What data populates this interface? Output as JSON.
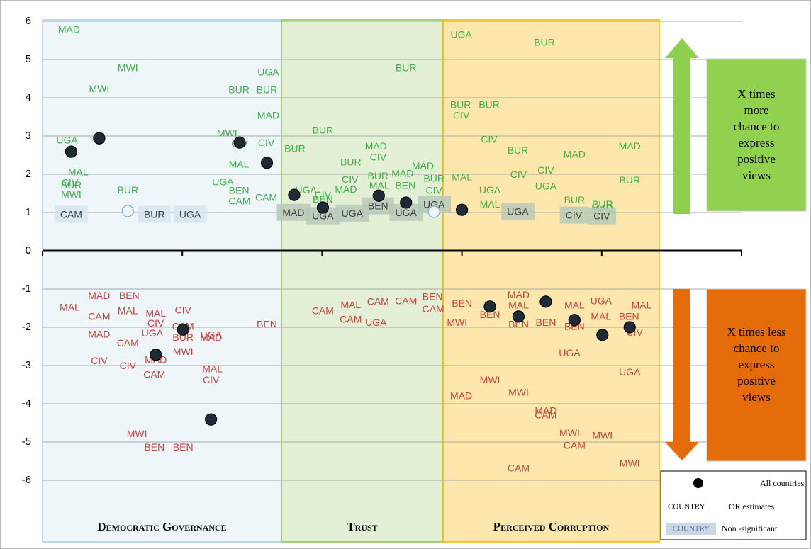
{
  "chart_data": {
    "type": "scatter",
    "xlim": [
      0,
      10
    ],
    "xticks": [
      0,
      2,
      4,
      6,
      8,
      10
    ],
    "ylim": [
      -6,
      6
    ],
    "yticks": [
      -6,
      -5,
      -4,
      -3,
      -2,
      -1,
      0,
      1,
      2,
      3,
      4,
      5,
      6
    ],
    "grid": true,
    "panels": [
      "Democratic Governance",
      "Trust",
      "Perceived Corruption"
    ],
    "up_box": [
      "X times",
      "more",
      "chance to",
      "express",
      "positive",
      "views"
    ],
    "down_box": [
      "X times less",
      "chance to",
      "express",
      "positive",
      "views"
    ],
    "legend": {
      "country": "COUNTRY",
      "or": "OR estimates",
      "nonsig": "Non -significant"
    },
    "series": [
      {
        "color": "#3fae49",
        "labels": [
          "MAD",
          "MWI",
          "MWI",
          "UGA",
          "MAL",
          "CIV",
          "BUR",
          "MWI",
          "BUR",
          "UGA",
          "BUR",
          "BUR",
          "MAD",
          "MWI",
          "CIV",
          "CIV",
          "MAL",
          "UGA",
          "BEN",
          "CAM",
          "CAM",
          "BUR",
          "BUR",
          "BUR",
          "MAD",
          "CIV",
          "MAD",
          "BUR",
          "CIV",
          "BUR",
          "MAD",
          "MAL",
          "BEN",
          "MAD",
          "BUR",
          "CIV",
          "UGA",
          "CIV",
          "BEN",
          "UGA",
          "BUR",
          "BUR",
          "BUR",
          "CIV",
          "CIV",
          "BUR",
          "MAD",
          "MAD",
          "CIV",
          "CIV",
          "UGA",
          "BUR",
          "MAL",
          "UGA",
          "MAL",
          "BUR",
          "BUR",
          "MAD"
        ],
        "x": [
          0.38,
          1.22,
          0.81,
          0.35,
          0.51,
          0.39,
          0.41,
          0.41,
          1.22,
          3.23,
          2.81,
          3.21,
          3.23,
          2.64,
          2.82,
          3.2,
          2.81,
          2.58,
          2.81,
          2.82,
          3.2,
          5.2,
          4.01,
          3.61,
          4.77,
          4.8,
          5.44,
          4.41,
          4.4,
          4.8,
          5.15,
          4.82,
          5.19,
          4.34,
          5.6,
          5.6,
          3.77,
          4.01,
          4.01,
          5.99,
          7.18,
          5.98,
          6.39,
          5.99,
          6.39,
          6.8,
          7.61,
          8.4,
          7.2,
          6.81,
          7.2,
          8.4,
          6.0,
          6.4,
          6.4,
          7.61,
          8.01,
          8.01
        ],
        "values": [
          5.76,
          4.76,
          4.22,
          2.87,
          2.04,
          1.76,
          1.7,
          1.46,
          1.57,
          4.65,
          4.19,
          4.19,
          3.52,
          3.06,
          2.78,
          2.81,
          2.24,
          1.78,
          1.56,
          1.28,
          1.37,
          4.76,
          3.13,
          2.65,
          2.72,
          2.43,
          2.2,
          2.3,
          1.85,
          1.94,
          2.0,
          1.69,
          1.69,
          1.59,
          1.87,
          1.56,
          1.57,
          1.44,
          1.33,
          5.63,
          5.43,
          3.8,
          3.8,
          3.52,
          2.89,
          2.61,
          2.5,
          2.72,
          2.09,
          1.98,
          1.67,
          1.83,
          1.91,
          1.57,
          1.2,
          1.31,
          1.2,
          1.09
        ]
      },
      {
        "color": "#404040",
        "nonsignificant": true,
        "labels": [
          "CAM",
          "BUR",
          "UGA",
          "MAD",
          "UGA",
          "UGA",
          "BEN",
          "UGA",
          "UGA",
          "UGA",
          "CIV",
          "CIV"
        ],
        "x": [
          0.41,
          1.6,
          2.11,
          3.59,
          4.01,
          4.43,
          4.8,
          5.2,
          5.6,
          6.8,
          7.6,
          8.0
        ],
        "values": [
          0.93,
          0.93,
          0.93,
          0.98,
          0.89,
          0.96,
          1.15,
          0.98,
          1.19,
          1.0,
          0.91,
          0.89
        ]
      },
      {
        "color": "#c8413b",
        "labels": [
          "MAD",
          "BEN",
          "MAL",
          "CAM",
          "MAL",
          "MAL",
          "CIV",
          "CIV",
          "MAD",
          "UGA",
          "CAM",
          "BUR",
          "MAD",
          "UGA",
          "CAM",
          "CIV",
          "CIV",
          "MAD",
          "MWI",
          "CAM",
          "MAL",
          "CIV",
          "BEN",
          "MWI",
          "BEN",
          "BEN",
          "CAM",
          "MAL",
          "CAM",
          "CAM",
          "BEN",
          "CAM",
          "CAM",
          "UGA",
          "BEN",
          "MWI",
          "BEN",
          "MAD",
          "MAL",
          "BEN",
          "BEN",
          "MAL",
          "UGA",
          "MAL",
          "BEN",
          "MAL",
          "BEN",
          "CIV",
          "UGA",
          "UGA",
          "MWI",
          "MAD",
          "MWI",
          "MAD",
          "CAM",
          "MWI",
          "MWI",
          "CAM",
          "CAM",
          "MWI"
        ],
        "x": [
          0.81,
          1.24,
          0.39,
          0.81,
          1.22,
          1.62,
          2.01,
          1.62,
          0.81,
          1.57,
          2.01,
          2.01,
          2.41,
          2.41,
          1.22,
          0.81,
          1.22,
          1.62,
          2.01,
          1.6,
          2.43,
          2.41,
          3.21,
          1.35,
          1.6,
          2.01,
          4.01,
          4.41,
          4.8,
          5.2,
          5.58,
          5.59,
          4.41,
          4.77,
          6.0,
          5.93,
          6.4,
          6.81,
          6.81,
          6.81,
          7.2,
          7.61,
          7.99,
          7.99,
          8.39,
          8.57,
          7.61,
          8.47,
          7.54,
          8.4,
          6.4,
          5.99,
          6.81,
          7.2,
          7.2,
          7.54,
          8.01,
          7.61,
          6.81,
          8.4
        ],
        "values": [
          -1.19,
          -1.19,
          -1.5,
          -1.74,
          -1.59,
          -1.65,
          -1.57,
          -1.91,
          -2.2,
          -2.17,
          -2.0,
          -2.28,
          -2.28,
          -2.22,
          -2.43,
          -2.89,
          -3.02,
          -2.87,
          -2.65,
          -3.26,
          -3.11,
          -3.39,
          -1.94,
          -4.8,
          -5.15,
          -5.15,
          -1.59,
          -1.43,
          -1.35,
          -1.33,
          -1.22,
          -1.54,
          -1.81,
          -1.89,
          -1.39,
          -1.89,
          -1.69,
          -1.17,
          -1.44,
          -1.94,
          -1.89,
          -1.44,
          -1.33,
          -1.74,
          -1.74,
          -1.44,
          -2.0,
          -2.15,
          -2.69,
          -3.19,
          -3.39,
          -3.81,
          -3.72,
          -4.2,
          -4.31,
          -4.78,
          -4.85,
          -5.11,
          -5.7,
          -5.57
        ]
      }
    ],
    "dots": {
      "name": "All countries",
      "color": "#1e2b35",
      "x": [
        0.41,
        0.81,
        2.82,
        3.21,
        3.6,
        4.01,
        4.81,
        5.2,
        6.0,
        1.62,
        2.01,
        2.41,
        6.4,
        6.81,
        7.2,
        7.61,
        8.01,
        8.4,
        1.22,
        5.6
      ],
      "values": [
        2.59,
        2.94,
        2.83,
        2.3,
        1.46,
        1.13,
        1.44,
        1.26,
        1.07,
        -2.72,
        -2.06,
        -4.41,
        -1.46,
        -1.72,
        -1.33,
        -1.81,
        -2.2,
        -2.0,
        1.04,
        1.02
      ],
      "significant": [
        true,
        true,
        true,
        true,
        true,
        true,
        true,
        true,
        true,
        true,
        true,
        true,
        true,
        true,
        true,
        true,
        true,
        true,
        false,
        false
      ]
    }
  }
}
